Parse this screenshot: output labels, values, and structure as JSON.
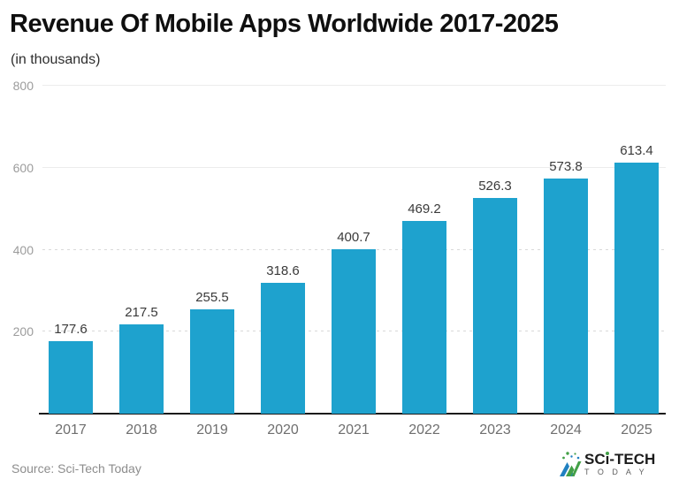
{
  "page": {
    "title": "Revenue Of Mobile Apps Worldwide 2017-2025",
    "subtitle": "(in thousands)",
    "source": "Source: Sci-Tech Today",
    "background": "#ffffff"
  },
  "chart_data": {
    "type": "bar",
    "title": "Revenue Of Mobile Apps Worldwide 2017-2025",
    "subtitle": "(in thousands)",
    "categories": [
      "2017",
      "2018",
      "2019",
      "2020",
      "2021",
      "2022",
      "2023",
      "2024",
      "2025"
    ],
    "values": [
      177.6,
      217.5,
      255.5,
      318.6,
      400.7,
      469.2,
      526.3,
      573.8,
      613.4
    ],
    "xlabel": "",
    "ylabel": "",
    "ylim": [
      0,
      800
    ],
    "yticks": [
      {
        "value": 200,
        "label": "200",
        "style": "dashed"
      },
      {
        "value": 400,
        "label": "400",
        "style": "dashed"
      },
      {
        "value": 600,
        "label": "600",
        "style": "solid"
      },
      {
        "value": 800,
        "label": "800",
        "style": "solid"
      }
    ],
    "grid": true,
    "legend": false,
    "bar_color": "#1ea2ce",
    "value_label_color": "#3a3a3a",
    "axis_label_color": "#6f6f6f",
    "tick_label_color": "#9c9c9c"
  },
  "branding": {
    "logo_sc": "SC",
    "logo_i": "ı",
    "logo_tech": "-TECH",
    "logo_sub": "T O D A Y",
    "logo_blue": "#2080c0",
    "logo_green": "#43a047"
  }
}
